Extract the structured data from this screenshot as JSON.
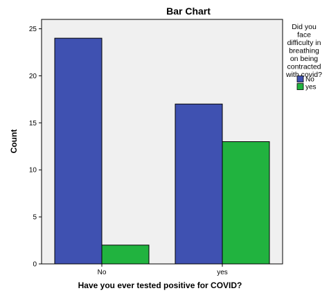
{
  "chart_data": {
    "type": "bar",
    "title": "Bar Chart",
    "xlabel": "Have you ever tested positive for COVID?",
    "ylabel": "Count",
    "categories": [
      "No",
      "yes"
    ],
    "series": [
      {
        "name": "No",
        "values": [
          24,
          17
        ],
        "color": "#3f51b1"
      },
      {
        "name": "yes",
        "values": [
          2,
          13
        ],
        "color": "#21b33f"
      }
    ],
    "ylim": [
      0,
      26
    ],
    "yticks": [
      0,
      5,
      10,
      15,
      20,
      25
    ],
    "legend": {
      "title_lines": [
        "Did you",
        "face",
        "difficulty in",
        "breathing",
        "on being",
        "contracted",
        "with covid?"
      ],
      "placement": "right"
    },
    "plot_background": "#f0f0f0",
    "grid": false
  }
}
